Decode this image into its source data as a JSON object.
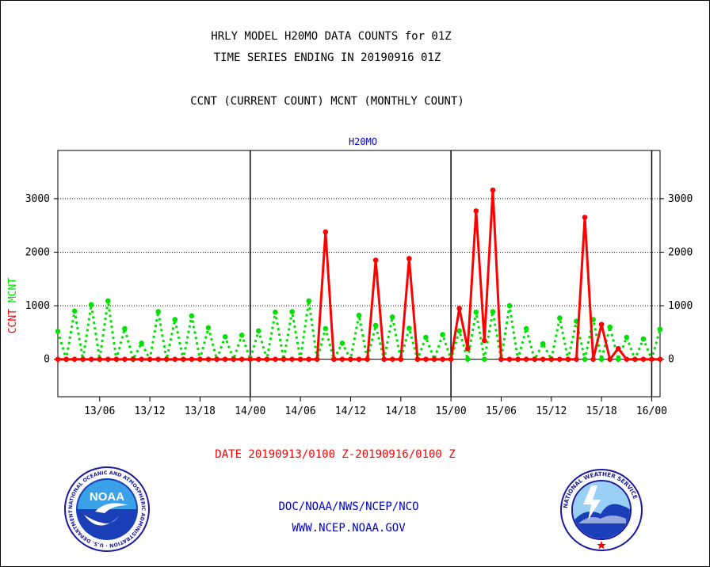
{
  "header": {
    "title_line1": "HRLY MODEL H20MO DATA COUNTS for 01Z",
    "title_line2": "TIME SERIES ENDING IN 20190916 01Z",
    "legend_desc": "CCNT (CURRENT COUNT) MCNT (MONTHLY COUNT)"
  },
  "footer": {
    "date_range": "DATE 20190913/0100 Z-20190916/0100 Z",
    "org_line": "DOC/NOAA/NWS/NCEP/NCO",
    "url": "WWW.NCEP.NOAA.GOV"
  },
  "logos": {
    "noaa_text": "NOAA",
    "noaa_ring_text": "NATIONAL OCEANIC AND ATMOSPHERIC ADMINISTRATION · U.S. DEPARTMENT OF COMMERCE ·",
    "nws_ring_text": "NATIONAL WEATHER SERVICE"
  },
  "colors": {
    "ccnt": "#ff0000",
    "mcnt": "#00e000",
    "panel_label": "#0000cc",
    "link_text": "#0000cc",
    "date_text": "#ff0000"
  },
  "chart_data": {
    "type": "line",
    "title": "H20MO",
    "ylabel_ccnt": "CCNT",
    "ylabel_mcnt": "MCNT",
    "ylim": [
      -700,
      3900
    ],
    "yticks": [
      0,
      1000,
      2000,
      3000
    ],
    "xlim_hours": [
      0,
      72
    ],
    "xticks": [
      {
        "hour": 5,
        "label": "13/06"
      },
      {
        "hour": 11,
        "label": "13/12"
      },
      {
        "hour": 17,
        "label": "13/18"
      },
      {
        "hour": 23,
        "label": "14/00"
      },
      {
        "hour": 29,
        "label": "14/06"
      },
      {
        "hour": 35,
        "label": "14/12"
      },
      {
        "hour": 41,
        "label": "14/18"
      },
      {
        "hour": 47,
        "label": "15/00"
      },
      {
        "hour": 53,
        "label": "15/06"
      },
      {
        "hour": 59,
        "label": "15/12"
      },
      {
        "hour": 65,
        "label": "15/18"
      },
      {
        "hour": 71,
        "label": "16/00"
      }
    ],
    "day_boundaries_hours": [
      23,
      47,
      71
    ],
    "grid": "dotted horizontal at 1000, 2000, 3000; solid at 0",
    "series": [
      {
        "name": "CCNT",
        "values": [
          0,
          0,
          0,
          0,
          0,
          0,
          0,
          0,
          0,
          0,
          0,
          0,
          0,
          0,
          0,
          0,
          0,
          0,
          0,
          0,
          0,
          0,
          0,
          0,
          0,
          0,
          0,
          0,
          0,
          0,
          0,
          0,
          2380,
          0,
          0,
          0,
          0,
          0,
          1850,
          0,
          0,
          0,
          1880,
          0,
          0,
          0,
          0,
          0,
          950,
          200,
          2770,
          350,
          3160,
          0,
          0,
          0,
          0,
          0,
          0,
          0,
          0,
          0,
          0,
          2650,
          0,
          650,
          0,
          200,
          0,
          0,
          0,
          0,
          0
        ]
      },
      {
        "name": "MCNT",
        "values": [
          520,
          0,
          900,
          0,
          1020,
          0,
          1090,
          0,
          570,
          0,
          300,
          0,
          890,
          0,
          740,
          0,
          810,
          0,
          590,
          0,
          420,
          0,
          450,
          0,
          530,
          0,
          880,
          0,
          890,
          0,
          1090,
          0,
          570,
          0,
          300,
          0,
          820,
          0,
          630,
          0,
          790,
          0,
          580,
          0,
          410,
          0,
          460,
          0,
          530,
          0,
          880,
          0,
          890,
          0,
          1000,
          0,
          570,
          0,
          290,
          0,
          770,
          0,
          710,
          0,
          740,
          0,
          600,
          0,
          410,
          0,
          380,
          0,
          560
        ]
      }
    ]
  }
}
